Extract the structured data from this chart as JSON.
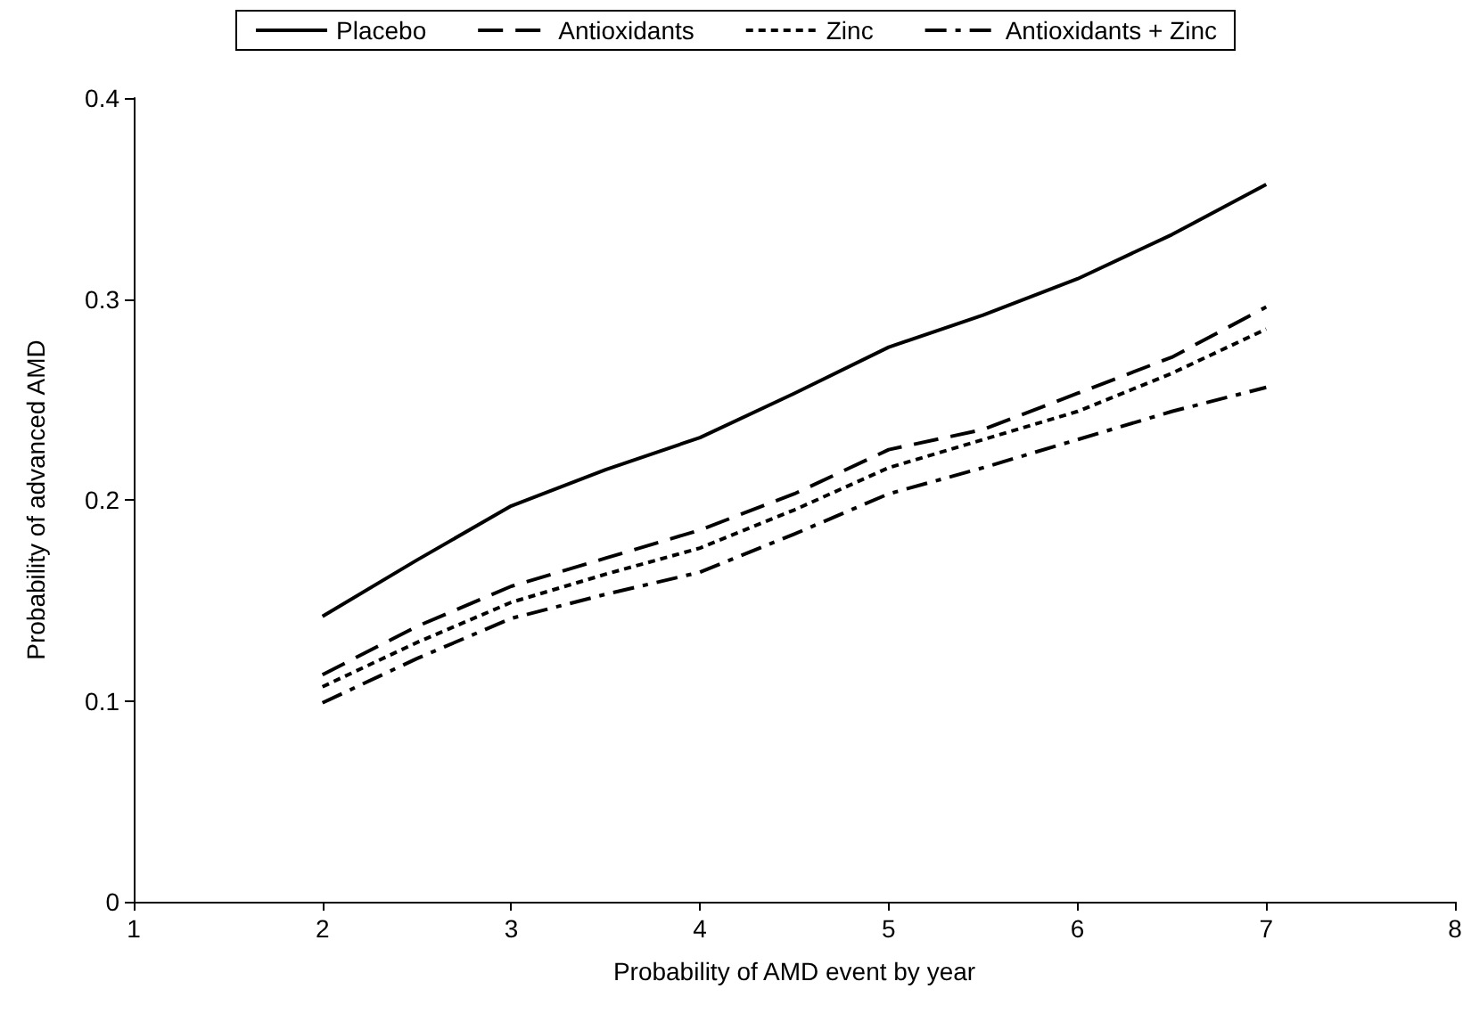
{
  "chart_data": {
    "type": "line",
    "xlabel": "Probability of AMD event by year",
    "ylabel": "Probability of advanced AMD",
    "x": [
      2,
      2.5,
      3,
      3.5,
      4,
      4.5,
      5,
      5.5,
      6,
      6.5,
      7
    ],
    "series": [
      {
        "name": "Placebo",
        "color": "#000000",
        "line_style": "solid",
        "values": [
          0.142,
          0.17,
          0.197,
          0.215,
          0.231,
          0.253,
          0.276,
          0.292,
          0.31,
          0.332,
          0.357
        ]
      },
      {
        "name": "Antioxidants",
        "color": "#000000",
        "line_style": "dashed",
        "values": [
          0.113,
          0.137,
          0.157,
          0.171,
          0.185,
          0.203,
          0.225,
          0.235,
          0.253,
          0.271,
          0.296
        ]
      },
      {
        "name": "Zinc",
        "color": "#000000",
        "line_style": "dotted",
        "values": [
          0.107,
          0.129,
          0.149,
          0.163,
          0.176,
          0.195,
          0.216,
          0.23,
          0.244,
          0.263,
          0.285
        ]
      },
      {
        "name": "Antioxidants + Zinc",
        "color": "#000000",
        "line_style": "dashdot",
        "values": [
          0.099,
          0.121,
          0.141,
          0.153,
          0.164,
          0.183,
          0.203,
          0.216,
          0.23,
          0.244,
          0.256
        ]
      }
    ],
    "xlim": [
      1,
      8
    ],
    "xticks": [
      1,
      2,
      3,
      4,
      5,
      6,
      7,
      8
    ],
    "ylim": [
      0,
      0.4
    ],
    "yticks": [
      0,
      0.1,
      0.2,
      0.3,
      0.4
    ],
    "grid": false,
    "legend": "top",
    "marker": "none"
  }
}
